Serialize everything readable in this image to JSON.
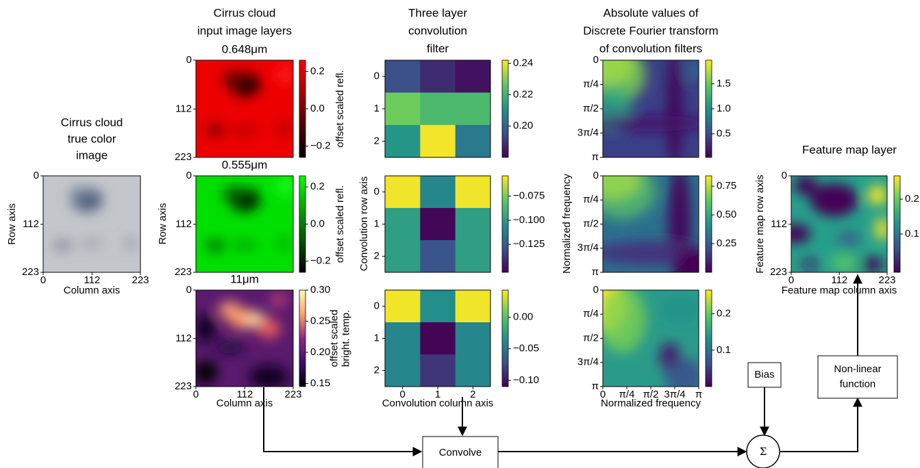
{
  "true_color": {
    "title": [
      "Cirrus cloud",
      "true color",
      "image"
    ],
    "range": [
      0,
      223
    ],
    "ticks": [
      0,
      112,
      223
    ],
    "xlabel": "Column axis",
    "ylabel": "Row axis"
  },
  "input_layers": {
    "title": [
      "Cirrus cloud",
      "input image layers"
    ],
    "range": [
      0,
      223
    ],
    "ticks": [
      0,
      112,
      223
    ],
    "xlabel": "Column axis",
    "ylabel": "Row axis",
    "layers": [
      {
        "label": "0.648μm",
        "clim": [
          -0.26,
          0.26
        ],
        "cbar_ticks": [
          0.2,
          {
            "value": 0,
            "label": "0.0"
          },
          {
            "value": -0.2,
            "label": "−0.2"
          }
        ],
        "cbar_label": [
          "offset scaled refl."
        ]
      },
      {
        "label": "0.555μm",
        "clim": [
          -0.26,
          0.26
        ],
        "cbar_ticks": [
          0.2,
          {
            "value": 0,
            "label": "0.0"
          },
          {
            "value": -0.2,
            "label": "−0.2"
          }
        ],
        "cbar_label": [
          "offset scaled refl."
        ]
      },
      {
        "label": "11μm",
        "clim": [
          0.145,
          0.3
        ],
        "cbar_ticks": [
          {
            "value": 0.3,
            "label": "0.30"
          },
          0.25,
          {
            "value": 0.2,
            "label": "0.20"
          },
          0.15
        ],
        "cbar_label": [
          "offset scaled",
          "bright. temp."
        ]
      }
    ]
  },
  "filters": {
    "title": [
      "Three layer",
      "convolution",
      "filter"
    ],
    "ticks": [
      0,
      1,
      2
    ],
    "xlabel": "Convolution column axis",
    "ylabel": "Convolution row axis",
    "layers": [
      {
        "values": [
          [
            0.195,
            0.188,
            0.183
          ],
          [
            0.228,
            0.222,
            0.222
          ],
          [
            0.212,
            0.241,
            0.205
          ]
        ],
        "clim": [
          0.18,
          0.242
        ],
        "cbar_ticks": [
          0.24,
          0.22,
          {
            "value": 0.2,
            "label": "0.20"
          }
        ]
      },
      {
        "values": [
          [
            -0.056,
            -0.108,
            -0.056
          ],
          [
            -0.098,
            -0.152,
            -0.098
          ],
          [
            -0.098,
            -0.128,
            -0.098
          ]
        ],
        "clim": [
          -0.154,
          -0.054
        ],
        "cbar_ticks": [
          {
            "value": -0.075,
            "label": "−0.075"
          },
          {
            "value": -0.1,
            "label": "−0.100"
          },
          {
            "value": -0.125,
            "label": "−0.125"
          }
        ]
      },
      {
        "values": [
          [
            0.04,
            -0.035,
            0.04
          ],
          [
            -0.04,
            -0.108,
            -0.04
          ],
          [
            -0.04,
            -0.085,
            -0.04
          ]
        ],
        "clim": [
          -0.11,
          0.043
        ],
        "cbar_ticks": [
          {
            "value": 0,
            "label": "0.00"
          },
          {
            "value": -0.05,
            "label": "−0.05"
          },
          {
            "value": -0.1,
            "label": "−0.10"
          }
        ]
      }
    ]
  },
  "dft": {
    "title": [
      "Absolute values of",
      "Discrete Fourier transform",
      "of convolution filters"
    ],
    "range": [
      0,
      3.1416
    ],
    "ticks": [
      0,
      {
        "value": 0.7854,
        "label": "π/4"
      },
      {
        "value": 1.5708,
        "label": "π/2"
      },
      {
        "value": 2.3562,
        "label": "3π/4"
      },
      {
        "value": 3.1416,
        "label": "π"
      }
    ],
    "xlabel": "Normalized frequency",
    "ylabel": "Normalized frequency",
    "layers": [
      {
        "clim": [
          0.03,
          1.97
        ],
        "cbar_ticks": [
          1.5,
          {
            "value": 1,
            "label": "1.0"
          },
          0.5
        ]
      },
      {
        "clim": [
          0,
          0.84
        ],
        "cbar_ticks": [
          0.75,
          {
            "value": 0.5,
            "label": "0.50"
          },
          0.25
        ]
      },
      {
        "clim": [
          0,
          0.265
        ],
        "cbar_ticks": [
          0.2,
          0.1
        ]
      }
    ]
  },
  "feature_map": {
    "title": "Feature map layer",
    "range": [
      0,
      223
    ],
    "ticks": [
      0,
      112,
      223
    ],
    "xlabel": "Feature map column axis",
    "ylabel": "Feature map row axis",
    "clim": [
      -0.01,
      0.267
    ],
    "cbar_ticks": [
      0.2,
      0.1
    ]
  },
  "flow": {
    "convolve": "Convolve",
    "bias": "Bias",
    "nonlinear": [
      "Non-linear",
      "function"
    ],
    "sum": "Σ"
  }
}
